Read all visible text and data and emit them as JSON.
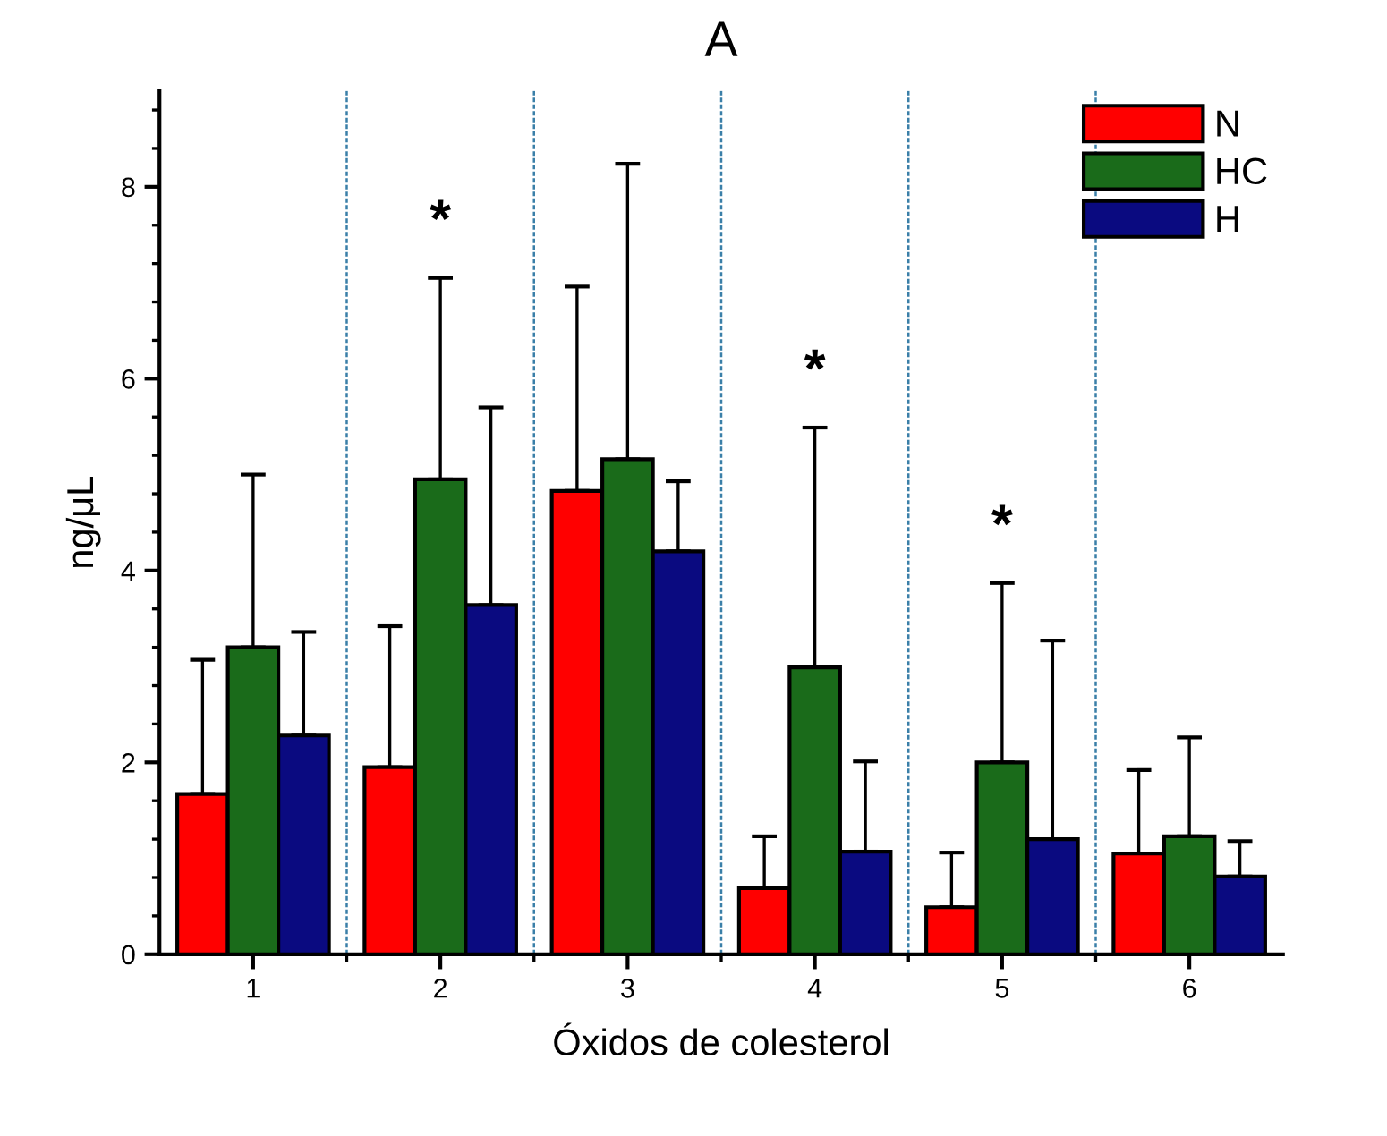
{
  "chart_data": {
    "type": "bar",
    "title": "A",
    "xlabel": "Óxidos de colesterol",
    "ylabel": "ng/μL",
    "categories": [
      "1",
      "2",
      "3",
      "4",
      "5",
      "6"
    ],
    "series": [
      {
        "name": "N",
        "color": "#ff0000",
        "values": [
          1.67,
          1.95,
          4.83,
          0.69,
          0.49,
          1.05
        ],
        "errors": [
          [
            1.67,
            3.07
          ],
          [
            1.95,
            3.42
          ],
          [
            4.83,
            6.96
          ],
          [
            0.69,
            1.23
          ],
          [
            0.49,
            1.06
          ],
          [
            1.05,
            1.92
          ]
        ]
      },
      {
        "name": "HC",
        "color": "#1a6b1a",
        "values": [
          3.2,
          4.95,
          5.16,
          2.99,
          2.0,
          1.23
        ],
        "errors": [
          [
            3.2,
            5.0
          ],
          [
            4.95,
            7.05
          ],
          [
            5.16,
            8.24
          ],
          [
            2.99,
            5.49
          ],
          [
            2.0,
            3.87
          ],
          [
            1.23,
            2.26
          ]
        ]
      },
      {
        "name": "H",
        "color": "#0a0a80",
        "values": [
          2.28,
          3.64,
          4.2,
          1.07,
          1.2,
          0.81
        ],
        "errors": [
          [
            2.28,
            3.36
          ],
          [
            3.64,
            5.7
          ],
          [
            4.2,
            4.93
          ],
          [
            1.07,
            2.01
          ],
          [
            1.2,
            3.27
          ],
          [
            0.81,
            1.18
          ]
        ]
      }
    ],
    "annotations": [
      {
        "text": "*",
        "x": "2",
        "y": 7.05
      },
      {
        "text": "*",
        "x": "4",
        "y": 5.49
      },
      {
        "text": "*",
        "x": "5",
        "y": 3.87
      }
    ],
    "ylim": [
      0,
      9
    ],
    "yticks": [
      0,
      2,
      4,
      6,
      8
    ],
    "grid": "x",
    "legend": "top right"
  }
}
